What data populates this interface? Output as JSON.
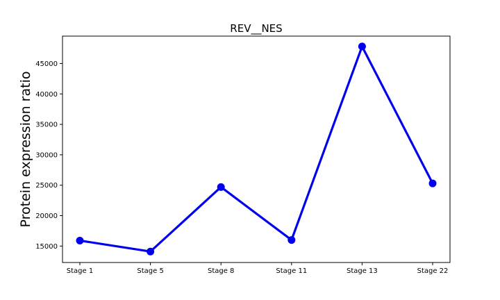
{
  "chart_data": {
    "type": "line",
    "title": "REV__NES",
    "xlabel": "",
    "ylabel": "Protein expression ratio",
    "categories": [
      "Stage 1",
      "Stage 5",
      "Stage 8",
      "Stage 11",
      "Stage 13",
      "Stage 22"
    ],
    "series": [
      {
        "values": [
          15900,
          14100,
          24700,
          16000,
          47800,
          25300
        ]
      }
    ],
    "ylim": [
      12300,
      49500
    ],
    "yticks": [
      15000,
      20000,
      25000,
      30000,
      35000,
      40000,
      45000
    ],
    "grid": false,
    "line_color": "#0000ee"
  }
}
